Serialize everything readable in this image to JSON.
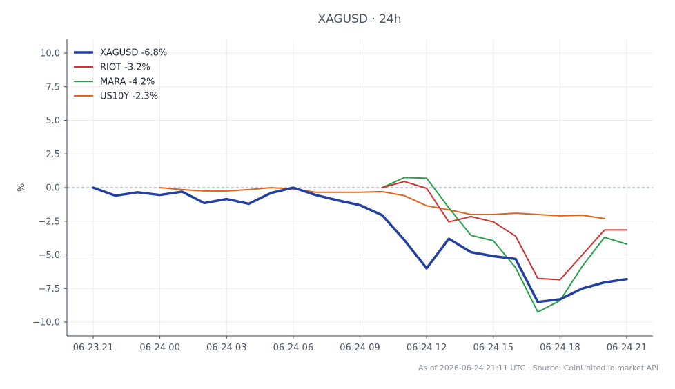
{
  "chart_title": "XAGUSD · 24h",
  "footer_note": "As of 2026-06-24 21:11 UTC · Source: CoinUnited.io market API",
  "chart_data": {
    "type": "line",
    "title": "XAGUSD · 24h",
    "xlabel": "",
    "ylabel": "%",
    "ylim": [
      -11,
      11
    ],
    "xlim": [
      "06-23 21",
      "06-24 21"
    ],
    "grid": true,
    "legend_position": "top-left",
    "reference_line": 0,
    "x_ticks": [
      "06-23 21",
      "06-24 00",
      "06-24 03",
      "06-24 06",
      "06-24 09",
      "06-24 12",
      "06-24 15",
      "06-24 18",
      "06-24 21"
    ],
    "y_ticks": [
      "10.0",
      "7.5",
      "5.0",
      "2.5",
      "0.0",
      "−2.5",
      "−5.0",
      "−7.5",
      "−10.0"
    ],
    "series": [
      {
        "name": "XAGUSD -6.8%",
        "color": "#2340a0",
        "x": [
          "06-23 21",
          "06-23 22",
          "06-23 23",
          "06-24 00",
          "06-24 01",
          "06-24 02",
          "06-24 03",
          "06-24 04",
          "06-24 05",
          "06-24 06",
          "06-24 07",
          "06-24 08",
          "06-24 09",
          "06-24 10",
          "06-24 11",
          "06-24 12",
          "06-24 13",
          "06-24 14",
          "06-24 15",
          "06-24 16",
          "06-24 17",
          "06-24 18",
          "06-24 19",
          "06-24 20",
          "06-24 21"
        ],
        "values": [
          0.0,
          -0.6,
          -0.35,
          -0.55,
          -0.3,
          -1.15,
          -0.85,
          -1.2,
          -0.4,
          0.0,
          -0.55,
          -0.95,
          -1.3,
          -2.05,
          -3.9,
          -6.0,
          -3.8,
          -4.8,
          -5.1,
          -5.3,
          -8.5,
          -8.3,
          -7.5,
          -7.05,
          -6.8
        ]
      },
      {
        "name": "RIOT -3.2%",
        "color": "#d03030",
        "x": [
          "06-24 10",
          "06-24 11",
          "06-24 12",
          "06-24 13",
          "06-24 14",
          "06-24 15",
          "06-24 16",
          "06-24 17",
          "06-24 18",
          "06-24 19",
          "06-24 20",
          "06-24 21"
        ],
        "values": [
          0.0,
          0.45,
          -0.05,
          -2.55,
          -2.15,
          -2.55,
          -3.6,
          -6.75,
          -6.85,
          -5.0,
          -3.15,
          -3.15
        ]
      },
      {
        "name": "MARA -4.2%",
        "color": "#28a04a",
        "x": [
          "06-24 10",
          "06-24 11",
          "06-24 12",
          "06-24 13",
          "06-24 14",
          "06-24 15",
          "06-24 16",
          "06-24 17",
          "06-24 18",
          "06-24 19",
          "06-24 20",
          "06-24 21"
        ],
        "values": [
          0.0,
          0.75,
          0.7,
          -1.5,
          -3.55,
          -3.95,
          -5.95,
          -9.25,
          -8.4,
          -5.85,
          -3.7,
          -4.2
        ]
      },
      {
        "name": "US10Y -2.3%",
        "color": "#e06418",
        "x": [
          "06-24 00",
          "06-24 01",
          "06-24 02",
          "06-24 03",
          "06-24 04",
          "06-24 05",
          "06-24 06",
          "06-24 07",
          "06-24 08",
          "06-24 09",
          "06-24 10",
          "06-24 11",
          "06-24 12",
          "06-24 13",
          "06-24 14",
          "06-24 15",
          "06-24 16",
          "06-24 17",
          "06-24 18",
          "06-24 19",
          "06-24 20"
        ],
        "values": [
          0.0,
          -0.15,
          -0.25,
          -0.25,
          -0.15,
          0.0,
          -0.1,
          -0.35,
          -0.35,
          -0.35,
          -0.3,
          -0.6,
          -1.35,
          -1.65,
          -2.0,
          -2.0,
          -1.9,
          -2.0,
          -2.1,
          -2.05,
          -2.3
        ]
      }
    ]
  }
}
